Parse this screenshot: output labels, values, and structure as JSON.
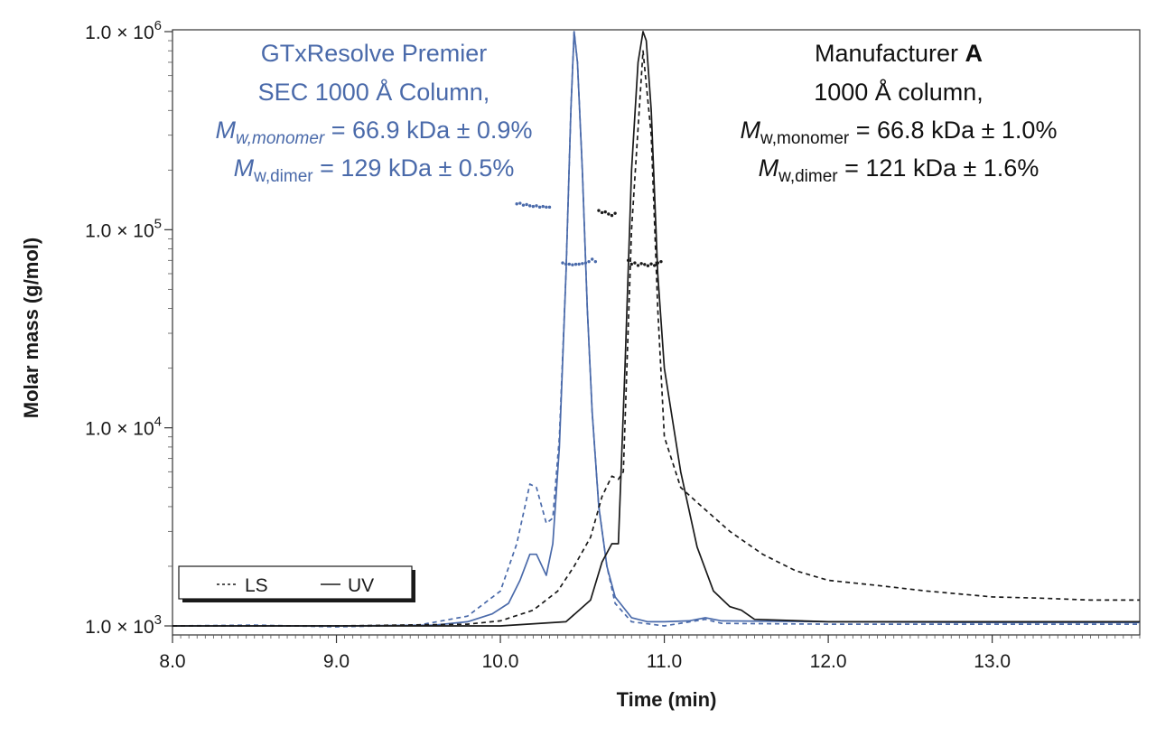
{
  "chart_data": {
    "type": "line",
    "title": "",
    "xlabel": "Time (min)",
    "ylabel": "Molar mass (g/mol)",
    "xlim": [
      8.0,
      13.9
    ],
    "ylim": [
      1000,
      1000000
    ],
    "yscale": "log",
    "x_ticks": [
      8.0,
      9.0,
      10.0,
      11.0,
      12.0,
      13.0
    ],
    "x_tick_labels": [
      "8.0",
      "9.0",
      "10.0",
      "11.0",
      "12.0",
      "13.0"
    ],
    "y_ticks": [
      {
        "value": 1000,
        "mantissa": "1.0 × 10",
        "exp": "3"
      },
      {
        "value": 10000,
        "mantissa": "1.0 × 10",
        "exp": "4"
      },
      {
        "value": 100000,
        "mantissa": "1.0 × 10",
        "exp": "5"
      },
      {
        "value": 1000000,
        "mantissa": "1.0 × 10",
        "exp": "6"
      }
    ],
    "colors": {
      "blue": "#4a6aaa",
      "black": "#1a1a1a"
    },
    "series": [
      {
        "name": "GTxResolve Premier UV",
        "style": "solid",
        "color": "#4a6aaa",
        "x": [
          8.0,
          9.0,
          9.6,
          9.8,
          9.95,
          10.05,
          10.12,
          10.18,
          10.22,
          10.28,
          10.32,
          10.36,
          10.4,
          10.43,
          10.45,
          10.47,
          10.5,
          10.53,
          10.56,
          10.6,
          10.65,
          10.7,
          10.8,
          10.9,
          11.0,
          11.15,
          11.25,
          11.35,
          12.0,
          13.0,
          13.9
        ],
        "y": [
          1000,
          1000,
          1010,
          1050,
          1150,
          1300,
          1700,
          2300,
          2300,
          1800,
          2600,
          8000,
          60000,
          400000,
          1000000,
          700000,
          200000,
          40000,
          12000,
          4000,
          2000,
          1400,
          1100,
          1050,
          1050,
          1060,
          1100,
          1060,
          1050,
          1040,
          1040
        ]
      },
      {
        "name": "GTxResolve Premier LS",
        "style": "dashed",
        "color": "#4a6aaa",
        "x": [
          8.0,
          8.5,
          9.0,
          9.5,
          9.8,
          10.0,
          10.1,
          10.18,
          10.22,
          10.28,
          10.32,
          10.36,
          10.4,
          10.43,
          10.45,
          10.47,
          10.5,
          10.53,
          10.56,
          10.6,
          10.65,
          10.7,
          10.8,
          11.0,
          11.25,
          11.35,
          12.0,
          13.0,
          13.9
        ],
        "y": [
          1000,
          1010,
          990,
          1010,
          1120,
          1500,
          2600,
          5200,
          5000,
          3300,
          3500,
          9000,
          60000,
          400000,
          1000000,
          700000,
          200000,
          40000,
          12000,
          4000,
          2000,
          1300,
          1050,
          1000,
          1080,
          1030,
          1020,
          1020,
          1020
        ]
      },
      {
        "name": "Manufacturer A UV",
        "style": "solid",
        "color": "#1a1a1a",
        "x": [
          8.0,
          10.0,
          10.4,
          10.55,
          10.62,
          10.68,
          10.72,
          10.76,
          10.8,
          10.84,
          10.87,
          10.89,
          10.92,
          10.96,
          11.0,
          11.1,
          11.2,
          11.3,
          11.4,
          11.47,
          11.55,
          12.0,
          13.0,
          13.9
        ],
        "y": [
          1000,
          1000,
          1050,
          1350,
          2100,
          2600,
          2600,
          20000,
          200000,
          700000,
          1000000,
          900000,
          400000,
          60000,
          20000,
          6000,
          2500,
          1500,
          1250,
          1200,
          1080,
          1050,
          1050,
          1050
        ]
      },
      {
        "name": "Manufacturer A LS",
        "style": "dashed",
        "color": "#1a1a1a",
        "x": [
          8.0,
          9.0,
          9.8,
          10.0,
          10.2,
          10.35,
          10.45,
          10.55,
          10.62,
          10.68,
          10.72,
          10.75,
          10.8,
          10.87,
          10.92,
          10.96,
          11.0,
          11.1,
          11.2,
          11.4,
          11.6,
          11.8,
          12.0,
          12.3,
          12.6,
          12.8,
          13.0,
          13.3,
          13.6,
          13.9
        ],
        "y": [
          1000,
          1000,
          1020,
          1060,
          1200,
          1500,
          2000,
          2800,
          4500,
          5700,
          5500,
          6000,
          100000,
          800000,
          300000,
          40000,
          9000,
          5000,
          4200,
          3000,
          2300,
          1900,
          1700,
          1600,
          1500,
          1450,
          1400,
          1380,
          1350,
          1350
        ]
      },
      {
        "name": "GTxResolve Premier mass (dimer)",
        "style": "dots",
        "color": "#4a6aaa",
        "x": [
          10.1,
          10.12,
          10.14,
          10.16,
          10.18,
          10.2,
          10.22,
          10.24,
          10.26,
          10.28,
          10.3
        ],
        "y": [
          135000,
          136000,
          133000,
          134000,
          132000,
          131000,
          132000,
          130000,
          131000,
          130000,
          130000
        ]
      },
      {
        "name": "GTxResolve Premier mass (monomer)",
        "style": "dots",
        "color": "#4a6aaa",
        "x": [
          10.38,
          10.4,
          10.42,
          10.44,
          10.46,
          10.48,
          10.5,
          10.52,
          10.54,
          10.56,
          10.58
        ],
        "y": [
          68000,
          67000,
          67000,
          66500,
          66900,
          67000,
          67500,
          68000,
          69000,
          71000,
          69000
        ]
      },
      {
        "name": "Manufacturer A mass (dimer)",
        "style": "dots",
        "color": "#1a1a1a",
        "x": [
          10.6,
          10.62,
          10.64,
          10.66,
          10.68,
          10.7
        ],
        "y": [
          125000,
          122000,
          123000,
          120000,
          118000,
          121000
        ]
      },
      {
        "name": "Manufacturer A mass (monomer)",
        "style": "dots",
        "color": "#1a1a1a",
        "x": [
          10.78,
          10.8,
          10.82,
          10.84,
          10.86,
          10.88,
          10.9,
          10.92,
          10.94,
          10.96,
          10.98
        ],
        "y": [
          70000,
          67000,
          68000,
          66000,
          67500,
          66800,
          65800,
          67200,
          66000,
          68000,
          69000
        ]
      }
    ],
    "annotations": {
      "blue": {
        "line1": "GTxResolve Premier",
        "line2": "SEC 1000 Å Column,",
        "m_symbol": "M",
        "sub_monomer": "w,monomer",
        "value_monomer": " = 66.9 kDa ± 0.9%",
        "sub_dimer": "w,dimer",
        "value_dimer": " = 129 kDa ± 0.5%"
      },
      "black": {
        "line1_prefix": "Manufacturer ",
        "line1_bold": "A",
        "line2": "1000 Å column,",
        "m_symbol": "M",
        "sub_monomer": "w,monomer",
        "value_monomer": " = 66.8 kDa ± 1.0%",
        "sub_dimer": "w,dimer",
        "value_dimer": " = 121 kDa ± 1.6%"
      }
    },
    "legend": {
      "position": "bottom-left",
      "ls_label": "LS",
      "uv_label": "UV"
    }
  }
}
